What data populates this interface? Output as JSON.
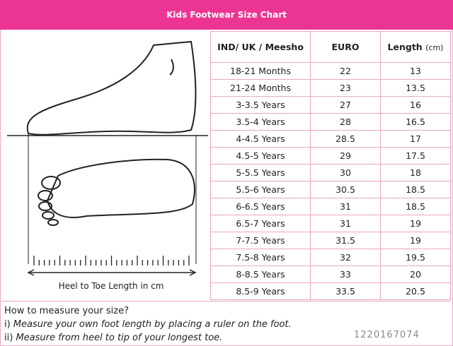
{
  "title": "Kids Footwear Size Chart",
  "illustration": {
    "caption": "Heel to Toe Length in cm"
  },
  "table": {
    "headers": [
      "IND/ UK / Meesho",
      "EURO",
      "Length",
      "(cm)"
    ],
    "rows": [
      [
        "18-21 Months",
        "22",
        "13"
      ],
      [
        "21-24 Months",
        "23",
        "13.5"
      ],
      [
        "3-3.5 Years",
        "27",
        "16"
      ],
      [
        "3.5-4 Years",
        "28",
        "16.5"
      ],
      [
        "4-4.5 Years",
        "28.5",
        "17"
      ],
      [
        "4.5-5 Years",
        "29",
        "17.5"
      ],
      [
        "5-5.5 Years",
        "30",
        "18"
      ],
      [
        "5.5-6 Years",
        "30.5",
        "18.5"
      ],
      [
        "6-6.5 Years",
        "31",
        "18.5"
      ],
      [
        "6.5-7 Years",
        "31",
        "19"
      ],
      [
        "7-7.5 Years",
        "31.5",
        "19"
      ],
      [
        "7.5-8 Years",
        "32",
        "19.5"
      ],
      [
        "8-8.5 Years",
        "33",
        "20"
      ],
      [
        "8.5-9 Years",
        "33.5",
        "20.5"
      ]
    ]
  },
  "instructions": {
    "heading": "How to measure your size?",
    "step1_prefix": "i) ",
    "step1": "Measure your own foot length by placing a ruler on the foot.",
    "step2_prefix": "ii) ",
    "step2": "Measure from heel to tip of your longest toe."
  },
  "watermark": "1220167074",
  "colors": {
    "header": "#ec3593",
    "border": "#e6a6c4"
  }
}
